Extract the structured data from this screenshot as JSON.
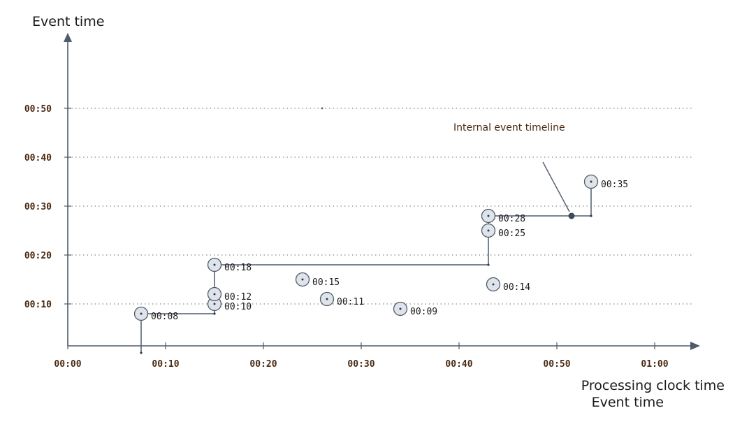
{
  "chart_data": {
    "type": "scatter",
    "title": "",
    "ylabel": "Event time",
    "xlabel": [
      "Processing clock time",
      "Event time"
    ],
    "x_ticks": [
      "00:00",
      "00:10",
      "00:20",
      "00:30",
      "00:40",
      "00:50",
      "01:00"
    ],
    "y_ticks": [
      "00:10",
      "00:20",
      "00:30",
      "00:40",
      "00:50"
    ],
    "xlim_seconds": [
      0,
      64
    ],
    "ylim_seconds": [
      0,
      58
    ],
    "grid": "horizontal dotted",
    "points": [
      {
        "x": "00:07.5",
        "y": "00:08",
        "label": "00:08"
      },
      {
        "x": "00:15",
        "y": "00:10",
        "label": "00:10"
      },
      {
        "x": "00:15",
        "y": "00:12",
        "label": "00:12"
      },
      {
        "x": "00:15",
        "y": "00:18",
        "label": "00:18"
      },
      {
        "x": "00:24",
        "y": "00:15",
        "label": "00:15"
      },
      {
        "x": "00:26.5",
        "y": "00:11",
        "label": "00:11"
      },
      {
        "x": "00:34",
        "y": "00:09",
        "label": "00:09"
      },
      {
        "x": "00:43",
        "y": "00:25",
        "label": "00:25"
      },
      {
        "x": "00:43",
        "y": "00:28",
        "label": "00:28"
      },
      {
        "x": "00:43.5",
        "y": "00:14",
        "label": "00:14"
      },
      {
        "x": "00:53.5",
        "y": "00:35",
        "label": "00:35"
      }
    ],
    "timeline": {
      "name": "Internal event timeline",
      "steps": [
        {
          "x": "00:07.5",
          "y": "00:00"
        },
        {
          "x": "00:07.5",
          "y": "00:08"
        },
        {
          "x": "00:15",
          "y": "00:08"
        },
        {
          "x": "00:15",
          "y": "00:18"
        },
        {
          "x": "00:43",
          "y": "00:18"
        },
        {
          "x": "00:43",
          "y": "00:28"
        },
        {
          "x": "00:53.5",
          "y": "00:28"
        },
        {
          "x": "00:53.5",
          "y": "00:35"
        }
      ],
      "marker": {
        "x": "00:51.5",
        "y": "00:28"
      }
    },
    "stray_point": {
      "x": "00:26",
      "y": "00:50"
    }
  },
  "colors": {
    "axis": "#4f5b6b",
    "point_fill": "#dfe3ea",
    "tick_label": "#4a2a12",
    "text": "#1a1a1a"
  }
}
